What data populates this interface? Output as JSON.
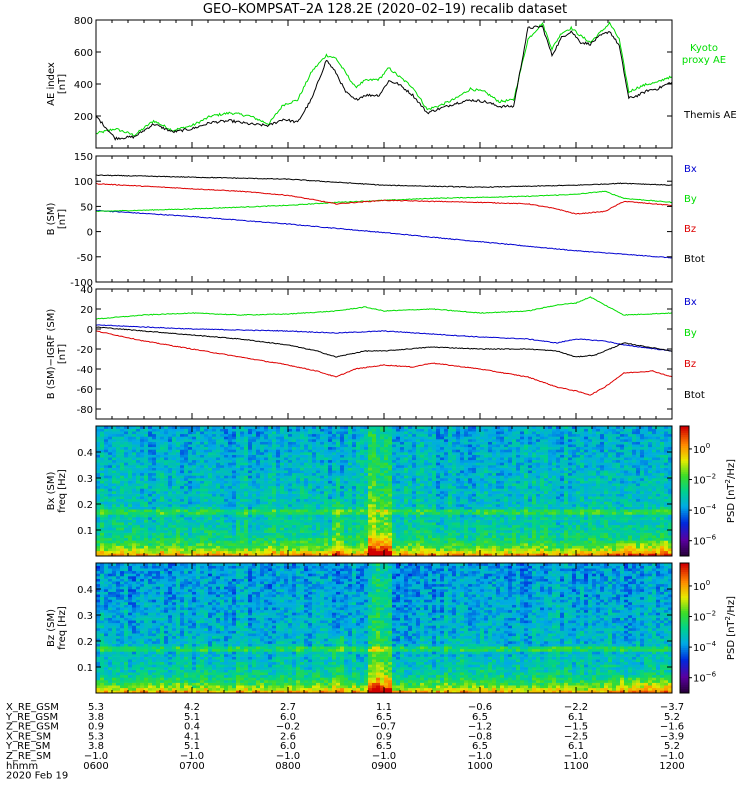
{
  "title": "GEO–KOMPSAT–2A 128.2E (2020–02–19) recalib dataset",
  "colors": {
    "black": "#000000",
    "blue": "#0000d0",
    "green": "#00dd00",
    "red": "#dd0000"
  },
  "chart_data": [
    {
      "type": "line",
      "panel": "ae",
      "ylabel": [
        "AE index",
        "[nT]"
      ],
      "ylim": [
        0,
        800
      ],
      "yticks": [
        200,
        400,
        600,
        800
      ],
      "xlim": [
        6.0,
        12.0
      ],
      "x_unit": "hour UT",
      "series": [
        {
          "name": "Kyoto proxy AE",
          "label_lines": [
            "Kyoto",
            "proxy AE"
          ],
          "color": "green",
          "x": [
            6.0,
            6.2,
            6.4,
            6.6,
            6.8,
            7.0,
            7.2,
            7.4,
            7.6,
            7.8,
            7.95,
            8.1,
            8.25,
            8.4,
            8.5,
            8.6,
            8.7,
            8.8,
            8.95,
            9.05,
            9.15,
            9.3,
            9.45,
            9.6,
            9.75,
            9.9,
            10.05,
            10.2,
            10.35,
            10.5,
            10.65,
            10.75,
            10.85,
            10.95,
            11.05,
            11.15,
            11.25,
            11.35,
            11.45,
            11.55,
            11.65,
            11.75,
            11.85,
            11.95,
            12.0
          ],
          "values": [
            90,
            120,
            80,
            170,
            110,
            140,
            200,
            220,
            200,
            150,
            270,
            300,
            480,
            580,
            560,
            470,
            380,
            420,
            430,
            500,
            450,
            380,
            240,
            270,
            310,
            370,
            350,
            290,
            300,
            680,
            780,
            620,
            720,
            750,
            700,
            660,
            720,
            780,
            680,
            350,
            380,
            400,
            410,
            440,
            440
          ]
        },
        {
          "name": "Themis AE",
          "label_lines": [
            "Themis AE"
          ],
          "color": "black",
          "x": [
            6.0,
            6.2,
            6.4,
            6.6,
            6.8,
            7.0,
            7.2,
            7.4,
            7.6,
            7.8,
            7.95,
            8.1,
            8.25,
            8.4,
            8.5,
            8.6,
            8.7,
            8.8,
            8.95,
            9.05,
            9.15,
            9.3,
            9.45,
            9.6,
            9.75,
            9.9,
            10.05,
            10.2,
            10.35,
            10.5,
            10.65,
            10.75,
            10.85,
            10.95,
            11.05,
            11.15,
            11.25,
            11.35,
            11.45,
            11.55,
            11.65,
            11.75,
            11.85,
            11.95,
            12.0
          ],
          "values": [
            200,
            60,
            70,
            150,
            100,
            120,
            160,
            170,
            150,
            140,
            180,
            160,
            310,
            550,
            470,
            350,
            300,
            330,
            330,
            420,
            400,
            330,
            220,
            250,
            280,
            300,
            290,
            260,
            260,
            750,
            760,
            580,
            690,
            730,
            660,
            650,
            700,
            730,
            640,
            310,
            330,
            360,
            370,
            400,
            410
          ]
        }
      ]
    },
    {
      "type": "line",
      "panel": "b",
      "ylabel": [
        "B (SM)",
        "[nT]"
      ],
      "ylim": [
        -100,
        150
      ],
      "yticks": [
        -100,
        -50,
        0,
        50,
        100,
        150
      ],
      "xlim": [
        6.0,
        12.0
      ],
      "series": [
        {
          "name": "Bx",
          "color": "blue",
          "x": [
            6.0,
            7.0,
            8.0,
            9.0,
            10.0,
            11.0,
            12.0
          ],
          "values": [
            42,
            30,
            15,
            -2,
            -20,
            -38,
            -52
          ]
        },
        {
          "name": "By",
          "color": "green",
          "x": [
            6.0,
            7.0,
            8.0,
            8.5,
            9.0,
            9.5,
            10.0,
            10.5,
            11.0,
            11.3,
            11.5,
            12.0
          ],
          "values": [
            40,
            45,
            52,
            58,
            62,
            66,
            68,
            70,
            74,
            80,
            66,
            58
          ]
        },
        {
          "name": "Bz",
          "color": "red",
          "x": [
            6.0,
            7.0,
            7.5,
            8.0,
            8.3,
            8.5,
            9.0,
            9.5,
            10.0,
            10.5,
            10.8,
            11.0,
            11.3,
            11.5,
            12.0
          ],
          "values": [
            95,
            85,
            80,
            72,
            62,
            55,
            62,
            60,
            58,
            55,
            45,
            35,
            40,
            60,
            52
          ]
        },
        {
          "name": "Btot",
          "color": "black",
          "x": [
            6.0,
            7.0,
            8.0,
            8.5,
            9.0,
            10.0,
            11.0,
            11.5,
            12.0
          ],
          "values": [
            112,
            108,
            104,
            98,
            92,
            88,
            92,
            96,
            92
          ]
        }
      ]
    },
    {
      "type": "line",
      "panel": "db",
      "ylabel": [
        "B (SM)−IGRF (SM)",
        "[nT]"
      ],
      "ylim": [
        -90,
        40
      ],
      "yticks": [
        -80,
        -60,
        -40,
        -20,
        0,
        20,
        40
      ],
      "xlim": [
        6.0,
        12.0
      ],
      "series": [
        {
          "name": "Bx",
          "color": "blue",
          "x": [
            6.0,
            7.0,
            8.0,
            8.5,
            9.0,
            9.5,
            10.0,
            10.5,
            10.8,
            11.0,
            11.3,
            11.5,
            12.0
          ],
          "values": [
            4,
            0,
            -2,
            -4,
            -2,
            -5,
            -8,
            -10,
            -14,
            -10,
            -12,
            -16,
            -22
          ]
        },
        {
          "name": "By",
          "color": "green",
          "x": [
            6.0,
            6.5,
            7.0,
            7.5,
            8.0,
            8.5,
            8.8,
            9.0,
            9.5,
            10.0,
            10.5,
            10.8,
            11.0,
            11.15,
            11.3,
            11.5,
            12.0
          ],
          "values": [
            10,
            14,
            16,
            14,
            15,
            18,
            22,
            18,
            20,
            16,
            18,
            24,
            26,
            32,
            24,
            14,
            16
          ]
        },
        {
          "name": "Bz",
          "color": "red",
          "x": [
            6.0,
            6.5,
            7.0,
            7.5,
            8.0,
            8.3,
            8.5,
            8.7,
            9.0,
            9.3,
            9.5,
            10.0,
            10.5,
            10.8,
            11.0,
            11.15,
            11.3,
            11.5,
            11.8,
            12.0
          ],
          "values": [
            -2,
            -12,
            -20,
            -28,
            -36,
            -42,
            -48,
            -40,
            -36,
            -38,
            -34,
            -40,
            -48,
            -58,
            -62,
            -66,
            -58,
            -44,
            -42,
            -48
          ]
        },
        {
          "name": "Btot",
          "color": "black",
          "x": [
            6.0,
            6.5,
            7.0,
            7.5,
            8.0,
            8.3,
            8.5,
            8.8,
            9.0,
            9.5,
            10.0,
            10.5,
            10.8,
            11.0,
            11.2,
            11.5,
            12.0
          ],
          "values": [
            2,
            -2,
            -6,
            -10,
            -16,
            -22,
            -28,
            -22,
            -22,
            -18,
            -20,
            -20,
            -22,
            -28,
            -26,
            -14,
            -22
          ]
        }
      ]
    },
    {
      "type": "heatmap",
      "panel": "spec-bx",
      "ylabel": [
        "Bx (SM)",
        "freq [Hz]"
      ],
      "ylim": [
        0,
        0.5
      ],
      "yticks": [
        0.1,
        0.2,
        0.3,
        0.4
      ],
      "ytick_labels": [
        "0.1",
        "0.2",
        "0.3",
        "0.4"
      ],
      "xlim": [
        6.0,
        12.0
      ],
      "colorbar": {
        "label": "PSD [nT²/Hz]",
        "label_text": "PSD [nT",
        "label_sup": "2",
        "label_tail": "/Hz]",
        "ticks": [
          0,
          -2,
          -4,
          -6
        ],
        "tick_base": "10",
        "range_log10": [
          -7,
          1.5
        ]
      }
    },
    {
      "type": "heatmap",
      "panel": "spec-bz",
      "ylabel": [
        "Bz (SM)",
        "freq [Hz]"
      ],
      "ylim": [
        0,
        0.5
      ],
      "yticks": [
        0.1,
        0.2,
        0.3,
        0.4
      ],
      "ytick_labels": [
        "0.1",
        "0.2",
        "0.3",
        "0.4"
      ],
      "xlim": [
        6.0,
        12.0
      ],
      "colorbar": {
        "label": "PSD [nT²/Hz]",
        "label_text": "PSD [nT",
        "label_sup": "2",
        "label_tail": "/Hz]",
        "ticks": [
          0,
          -2,
          -4,
          -6
        ],
        "tick_base": "10",
        "range_log10": [
          -7,
          1.5
        ]
      }
    }
  ],
  "ephemeris": {
    "row_labels": [
      "X_RE_GSM",
      "Y_RE_GSM",
      "Z_RE_GSM",
      "X_RE_SM",
      "Y_RE_SM",
      "Z_RE_SM",
      "hhmm"
    ],
    "columns": [
      [
        "5.3",
        "3.8",
        "0.9",
        "5.3",
        "3.8",
        "−1.0",
        "0600"
      ],
      [
        "4.2",
        "5.1",
        "0.4",
        "4.1",
        "5.1",
        "−1.0",
        "0700"
      ],
      [
        "2.7",
        "6.0",
        "−0.2",
        "2.6",
        "6.0",
        "−1.0",
        "0800"
      ],
      [
        "1.1",
        "6.5",
        "−0.7",
        "0.9",
        "6.5",
        "−1.0",
        "0900"
      ],
      [
        "−0.6",
        "6.5",
        "−1.2",
        "−0.8",
        "6.5",
        "−1.0",
        "1000"
      ],
      [
        "−2.2",
        "6.1",
        "−1.5",
        "−2.5",
        "6.1",
        "−1.0",
        "1100"
      ],
      [
        "−3.7",
        "5.2",
        "−1.6",
        "−3.9",
        "5.2",
        "−1.0",
        "1200"
      ]
    ],
    "date": "2020 Feb 19"
  }
}
